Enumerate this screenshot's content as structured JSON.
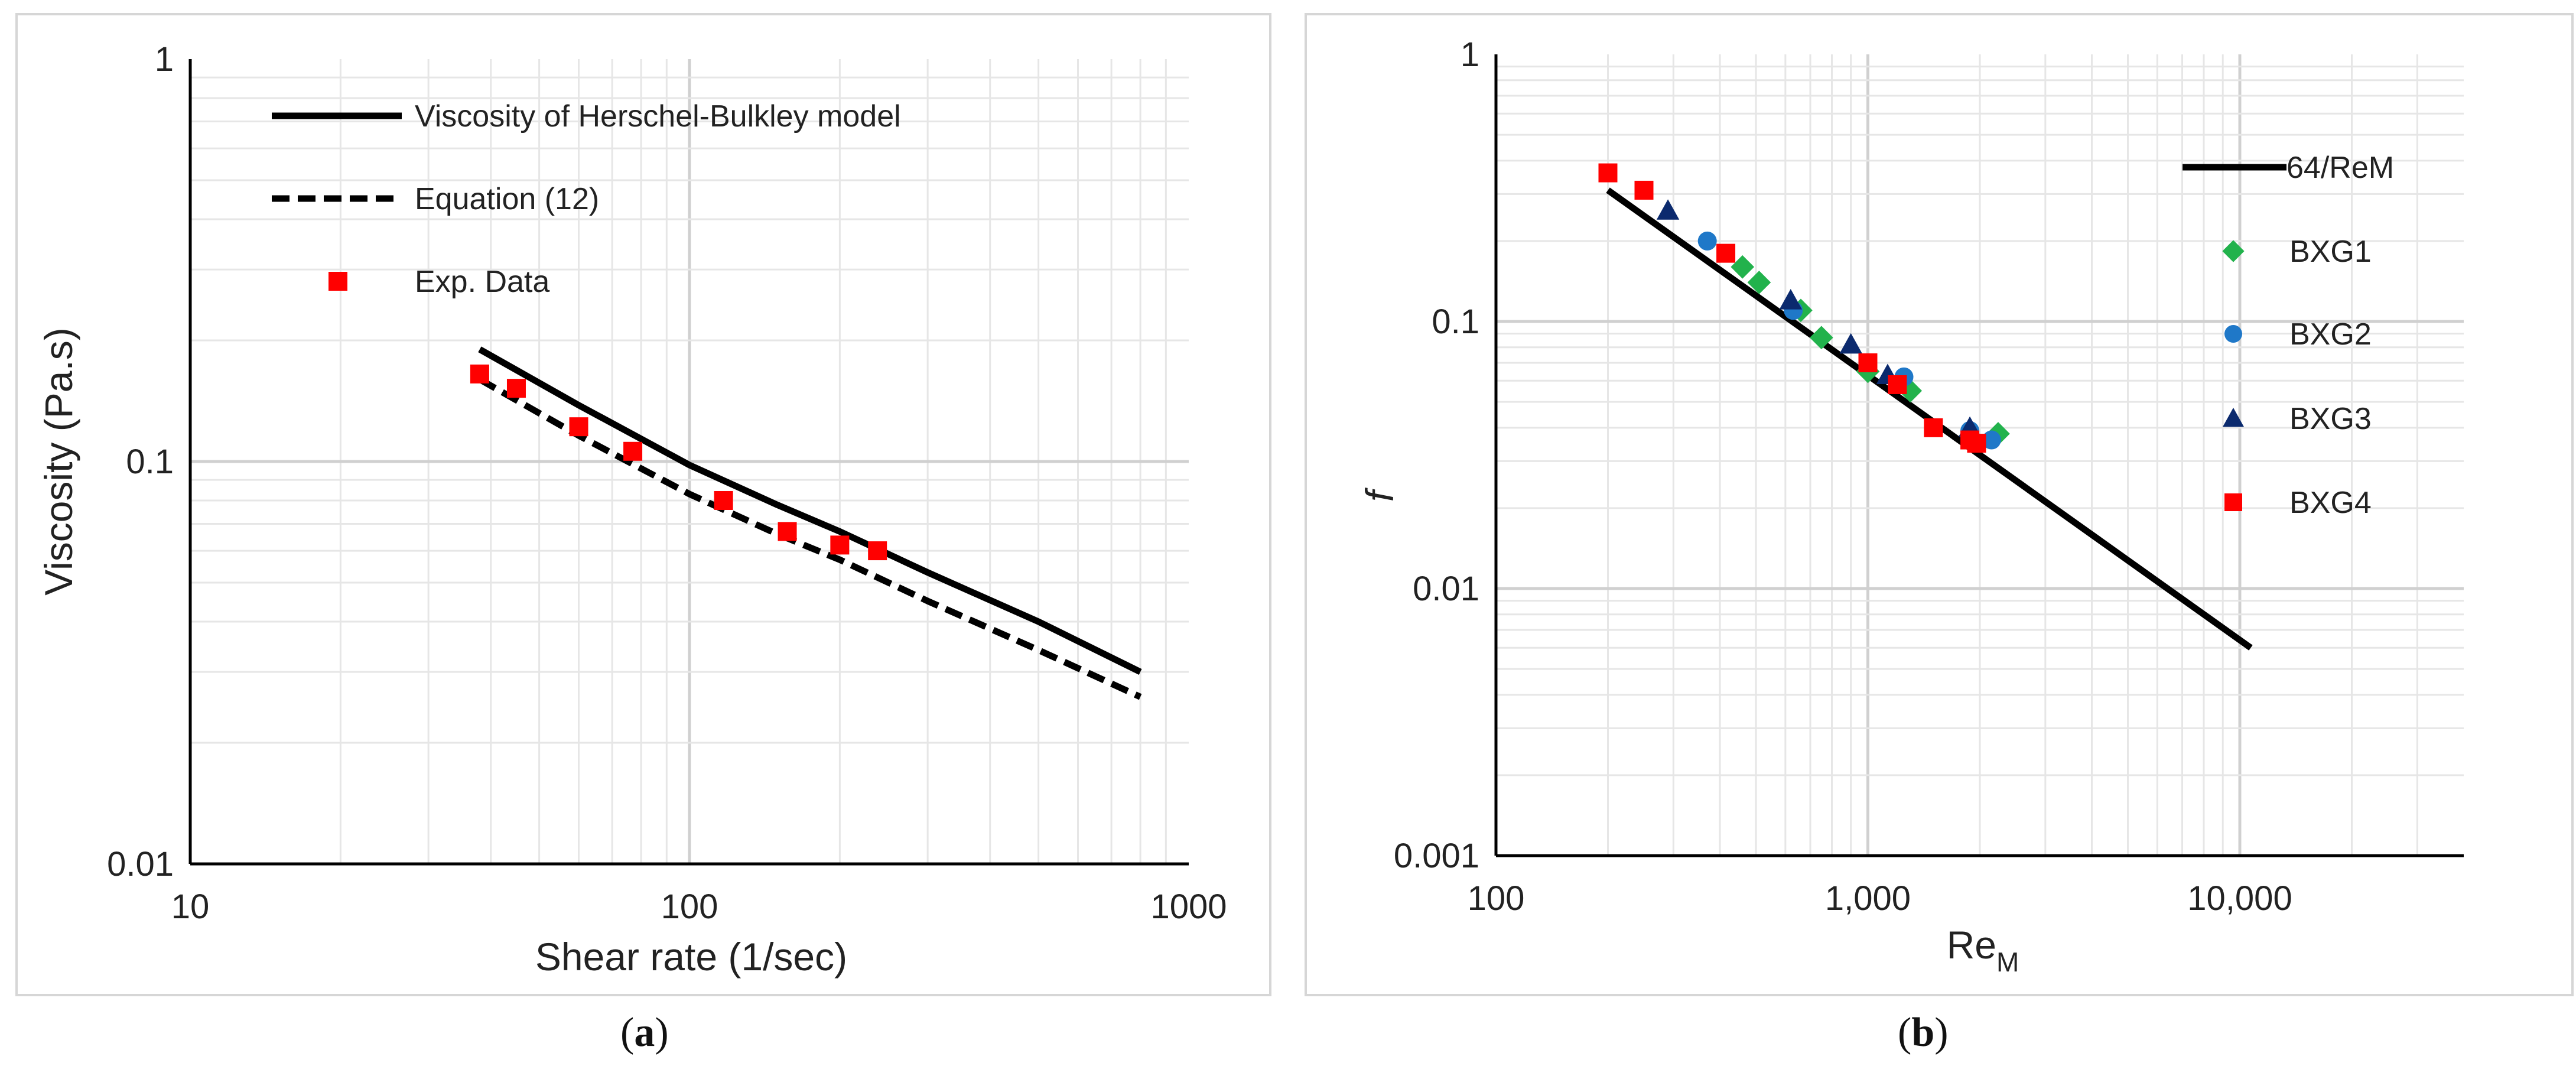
{
  "chart_data": [
    {
      "panel": "a",
      "caption_letter": "a",
      "type": "line",
      "xscale": "log",
      "yscale": "log",
      "xlim": [
        10,
        1000
      ],
      "ylim": [
        0.01,
        1
      ],
      "xlabel": "Shear rate (1/sec)",
      "ylabel": "Viscosity (Pa.s)",
      "x_ticks": [
        "10",
        "100",
        "1000"
      ],
      "y_ticks": [
        "0.01",
        "0.1",
        "1"
      ],
      "grid": true,
      "legend_position": "top-left",
      "series": [
        {
          "name": "Viscosity of Herschel-Bulkley model",
          "style": "solid-line",
          "color": "#000000",
          "x": [
            38,
            60,
            100,
            150,
            200,
            300,
            500,
            800
          ],
          "y": [
            0.19,
            0.138,
            0.098,
            0.078,
            0.067,
            0.053,
            0.04,
            0.03
          ]
        },
        {
          "name": "Equation (12)",
          "style": "dashed-line",
          "color": "#000000",
          "x": [
            38,
            60,
            100,
            150,
            200,
            300,
            500,
            800
          ],
          "y": [
            0.16,
            0.116,
            0.083,
            0.066,
            0.057,
            0.045,
            0.034,
            0.026
          ]
        },
        {
          "name": "Exp. Data",
          "style": "square-marker",
          "color": "#ff0000",
          "x": [
            38,
            45,
            60,
            77,
            117,
            157,
            200,
            238
          ],
          "y": [
            0.165,
            0.152,
            0.122,
            0.106,
            0.08,
            0.067,
            0.062,
            0.06
          ]
        }
      ]
    },
    {
      "panel": "b",
      "caption_letter": "b",
      "type": "scatter",
      "xscale": "log",
      "yscale": "log",
      "xlim": [
        100,
        40000
      ],
      "ylim": [
        0.001,
        1
      ],
      "xlabel_main": "Re",
      "xlabel_sub": "M",
      "ylabel": "f",
      "x_ticks": [
        "100",
        "1,000",
        "10,000"
      ],
      "y_ticks": [
        "0.001",
        "0.01",
        "0.1",
        "1"
      ],
      "grid": true,
      "legend_position": "right",
      "series": [
        {
          "name": "64/ReM",
          "style": "solid-line",
          "color": "#000000",
          "x": [
            200,
            10700
          ],
          "y": [
            0.31,
            0.006
          ]
        },
        {
          "name": "BXG1",
          "style": "diamond-marker",
          "color": "#22b24c",
          "x": [
            460,
            510,
            660,
            750,
            1000,
            1300,
            2240
          ],
          "y": [
            0.16,
            0.14,
            0.11,
            0.087,
            0.065,
            0.055,
            0.038
          ]
        },
        {
          "name": "BXG2",
          "style": "circle-marker",
          "color": "#1f78c8",
          "x": [
            370,
            630,
            1250,
            1880,
            2150
          ],
          "y": [
            0.2,
            0.11,
            0.062,
            0.039,
            0.036
          ]
        },
        {
          "name": "BXG3",
          "style": "triangle-marker",
          "color": "#0b2a6e",
          "x": [
            290,
            620,
            900,
            1130,
            1880
          ],
          "y": [
            0.26,
            0.12,
            0.082,
            0.063,
            0.04
          ]
        },
        {
          "name": "BXG4",
          "style": "square-marker",
          "color": "#ff0000",
          "x": [
            200,
            250,
            415,
            1000,
            1200,
            1500,
            1880,
            1960
          ],
          "y": [
            0.36,
            0.31,
            0.18,
            0.07,
            0.058,
            0.04,
            0.036,
            0.035
          ]
        }
      ]
    }
  ]
}
